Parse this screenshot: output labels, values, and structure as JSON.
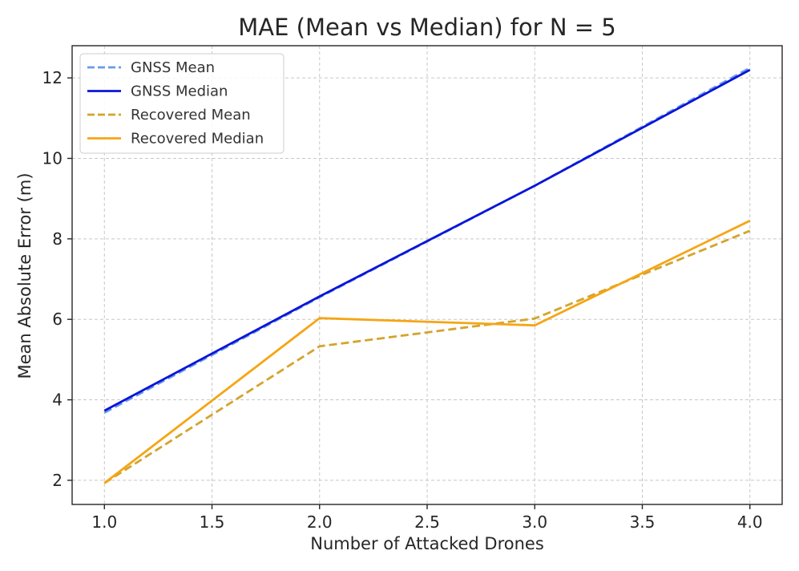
{
  "chart_data": {
    "type": "line",
    "title": "MAE (Mean vs Median) for N = 5",
    "xlabel": "Number of Attacked Drones",
    "ylabel": "Mean Absolute Error (m)",
    "xlim": [
      0.85,
      4.15
    ],
    "ylim": [
      1.4,
      12.8
    ],
    "xticks": [
      1.0,
      1.5,
      2.0,
      2.5,
      3.0,
      3.5,
      4.0
    ],
    "xtick_labels": [
      "1.0",
      "1.5",
      "2.0",
      "2.5",
      "3.0",
      "3.5",
      "4.0"
    ],
    "yticks": [
      2,
      4,
      6,
      8,
      10,
      12
    ],
    "ytick_labels": [
      "2",
      "4",
      "6",
      "8",
      "10",
      "12"
    ],
    "grid": true,
    "legend_position": "top-left",
    "x": [
      1.0,
      2.0,
      3.0,
      4.0
    ],
    "series": [
      {
        "name": "GNSS Mean",
        "values": [
          3.68,
          6.55,
          9.32,
          12.25
        ],
        "color": "#6a9be8",
        "style": "dashed"
      },
      {
        "name": "GNSS Median",
        "values": [
          3.73,
          6.57,
          9.32,
          12.2
        ],
        "color": "#0a14d9",
        "style": "solid"
      },
      {
        "name": "Recovered Mean",
        "values": [
          1.93,
          5.33,
          6.02,
          8.2
        ],
        "color": "#d4a42c",
        "style": "dashed"
      },
      {
        "name": "Recovered Median",
        "values": [
          1.93,
          6.03,
          5.85,
          8.45
        ],
        "color": "#f5a514",
        "style": "solid"
      }
    ]
  }
}
